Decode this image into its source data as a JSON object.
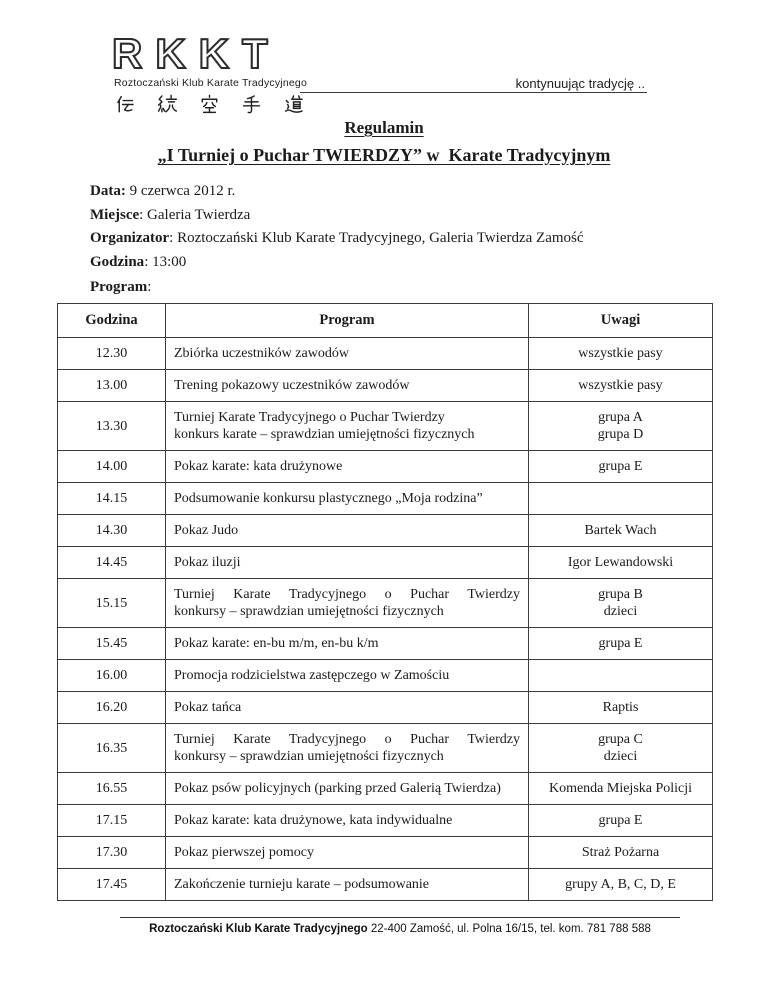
{
  "colors": {
    "ink": "#1b1b1b",
    "border": "#3d3d3d"
  },
  "header": {
    "logo": {
      "letters": "RKKT",
      "club_name": "Roztoczański Klub Karate Tradycyjnego",
      "kanji": "伝 統 空 手 道"
    },
    "tagline": "kontynuując tradycję .."
  },
  "title": {
    "line1": "Regulamin",
    "line2": "„I Turniej o Puchar TWIERDZY” w  Karate Tradycyjnym"
  },
  "meta": [
    {
      "label": "Data:",
      "value": " 9 czerwca 2012 r."
    },
    {
      "label": "Miejsce",
      "value": ": Galeria Twierdza"
    },
    {
      "label": "Organizator",
      "value": ": Roztoczański Klub Karate Tradycyjnego, Galeria Twierdza Zamość"
    },
    {
      "label": "Godzina",
      "value": ": 13:00"
    },
    {
      "label": "Program",
      "value": ":"
    }
  ],
  "table": {
    "headers": [
      "Godzina",
      "Program",
      "Uwagi"
    ],
    "rows": [
      {
        "time": "12.30",
        "program": [
          "Zbiórka uczestników zawodów"
        ],
        "notes": [
          "wszystkie pasy"
        ],
        "justify": false
      },
      {
        "time": "13.00",
        "program": [
          "Trening pokazowy uczestników zawodów"
        ],
        "notes": [
          "wszystkie pasy"
        ],
        "justify": false
      },
      {
        "time": "13.30",
        "program": [
          "Turniej Karate Tradycyjnego o Puchar Twierdzy",
          "konkurs karate – sprawdzian umiejętności fizycznych"
        ],
        "notes": [
          "grupa A",
          "grupa D"
        ],
        "justify": false
      },
      {
        "time": "14.00",
        "program": [
          "Pokaz karate: kata drużynowe"
        ],
        "notes": [
          "grupa E"
        ],
        "justify": false
      },
      {
        "time": "14.15",
        "program": [
          "Podsumowanie konkursu plastycznego „Moja rodzina”"
        ],
        "notes": [],
        "justify": false
      },
      {
        "time": "14.30",
        "program": [
          "Pokaz Judo"
        ],
        "notes": [
          "Bartek Wach"
        ],
        "justify": false
      },
      {
        "time": "14.45",
        "program": [
          "Pokaz iluzji"
        ],
        "notes": [
          "Igor Lewandowski"
        ],
        "justify": false
      },
      {
        "time": "15.15",
        "program": [
          "Turniej Karate Tradycyjnego o Puchar Twierdzy",
          "konkursy – sprawdzian umiejętności fizycznych"
        ],
        "notes": [
          "grupa B",
          "dzieci"
        ],
        "justify": true
      },
      {
        "time": "15.45",
        "program": [
          "Pokaz karate: en-bu m/m, en-bu k/m"
        ],
        "notes": [
          "grupa E"
        ],
        "justify": false
      },
      {
        "time": "16.00",
        "program": [
          "Promocja rodzicielstwa zastępczego w Zamościu"
        ],
        "notes": [],
        "justify": false
      },
      {
        "time": "16.20",
        "program": [
          "Pokaz tańca"
        ],
        "notes": [
          "Raptis"
        ],
        "justify": false
      },
      {
        "time": "16.35",
        "program": [
          "Turniej Karate Tradycyjnego o Puchar Twierdzy",
          "konkursy – sprawdzian umiejętności fizycznych"
        ],
        "notes": [
          "grupa C",
          "dzieci"
        ],
        "justify": true
      },
      {
        "time": "16.55",
        "program": [
          "Pokaz psów policyjnych (parking przed Galerią Twierdza)"
        ],
        "notes": [
          "Komenda Miejska Policji"
        ],
        "justify": false
      },
      {
        "time": "17.15",
        "program": [
          "Pokaz karate: kata drużynowe, kata indywidualne"
        ],
        "notes": [
          "grupa E"
        ],
        "justify": false
      },
      {
        "time": "17.30",
        "program": [
          "Pokaz pierwszej pomocy"
        ],
        "notes": [
          "Straż Pożarna"
        ],
        "justify": false
      },
      {
        "time": "17.45",
        "program": [
          "Zakończenie turnieju karate – podsumowanie"
        ],
        "notes": [
          "grupy A, B, C, D, E"
        ],
        "justify": false
      }
    ]
  },
  "footer": {
    "club": "Roztoczański Klub Karate Tradycyjnego",
    "address": " 22-400 Zamość, ul. Polna 16/15, tel. kom. 781 788 588"
  }
}
